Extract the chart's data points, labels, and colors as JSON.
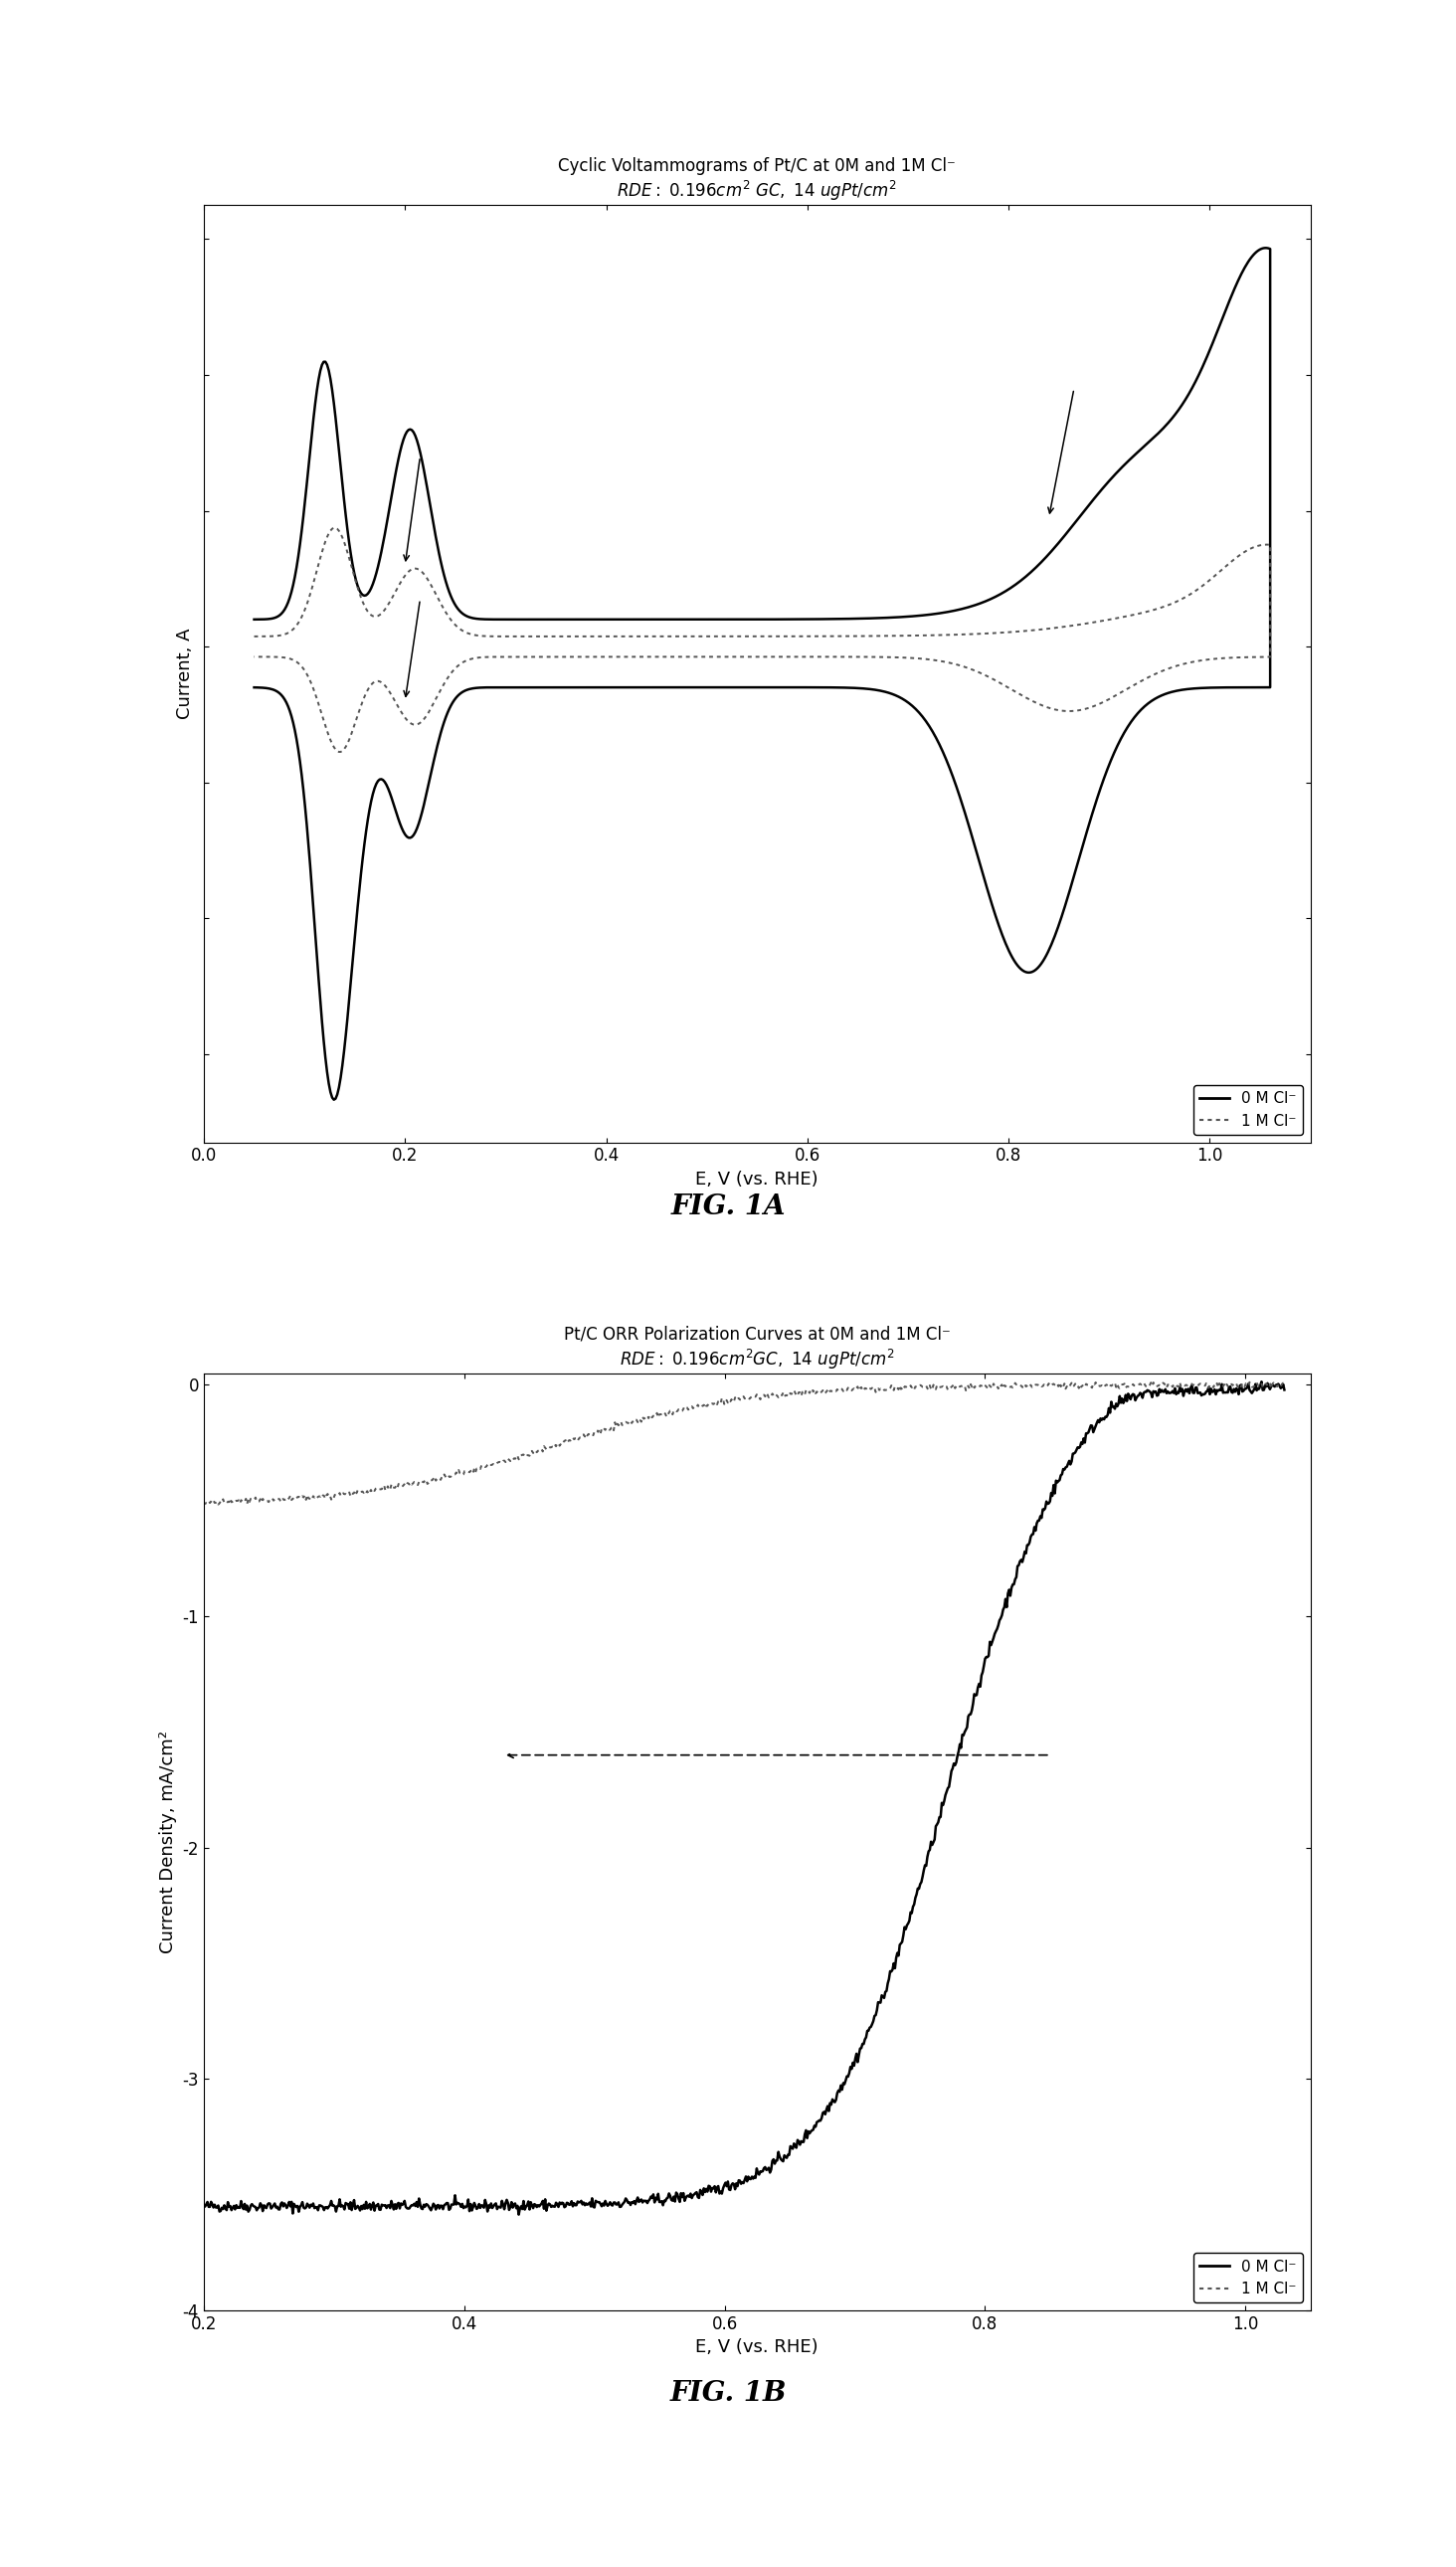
{
  "fig1a": {
    "title_line1": "Cyclic Voltammograms of Pt/C at 0M and 1M Cl⁻",
    "title_line2": "RDE: 0.196cm² GC, 14 ugPt/cm²",
    "xlabel": "E, V (vs. RHE)",
    "ylabel": "Current, A",
    "xlim": [
      0.0,
      1.1
    ],
    "xticks": [
      0.0,
      0.2,
      0.4,
      0.6,
      0.8,
      1.0
    ],
    "fig_label": "FIG. 1A",
    "legend": [
      "0 M Cl⁻",
      "1 M Cl⁻"
    ]
  },
  "fig1b": {
    "title_line1": "Pt/C ORR Polarization Curves at 0M and 1M Cl⁻",
    "title_line2": "RDE: 0.196cm²GC, 14 ugPt/cm²",
    "xlabel": "E, V (vs. RHE)",
    "ylabel": "Current Density, mA/cm²",
    "xlim": [
      0.2,
      1.05
    ],
    "ylim": [
      -4.0,
      0.05
    ],
    "xticks": [
      0.2,
      0.4,
      0.6,
      0.8,
      1.0
    ],
    "yticks": [
      -4,
      -3,
      -2,
      -1,
      0
    ],
    "fig_label": "FIG. 1B",
    "legend": [
      "0 M Cl⁻",
      "1 M Cl⁻"
    ]
  },
  "background_color": "#ffffff",
  "line_color_solid": "#000000",
  "line_color_dotted": "#555555"
}
